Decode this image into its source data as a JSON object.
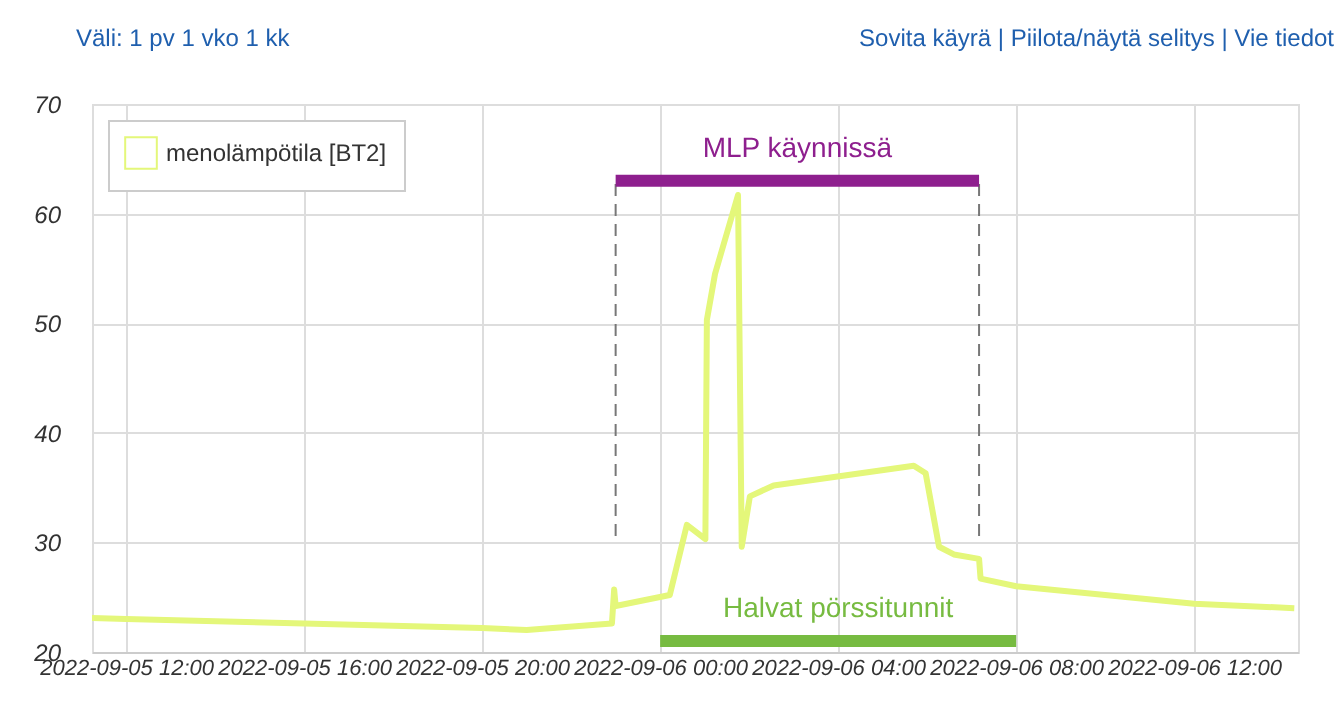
{
  "chart_data": {
    "type": "line",
    "annotations": [
      "Väli: 1 pv 1 vko 1 kk",
      "Sovita käyrä | Piilota/näytä selitys | Vie tiedot"
    ],
    "x": [
      "2022-09-05T11:14",
      "2022-09-05T12:00",
      "2022-09-05T16:00",
      "2022-09-05T20:00",
      "2022-09-05T21:00",
      "2022-09-05T22:55",
      "2022-09-05T22:58",
      "2022-09-05T23:00",
      "2022-09-06T00:13",
      "2022-09-06T00:36",
      "2022-09-06T01:01",
      "2022-09-06T01:03",
      "2022-09-06T01:14",
      "2022-09-06T01:45",
      "2022-09-06T01:50",
      "2022-09-06T02:01",
      "2022-09-06T02:33",
      "2022-09-06T05:42",
      "2022-09-06T05:58",
      "2022-09-06T06:16",
      "2022-09-06T06:36",
      "2022-09-06T07:10",
      "2022-09-06T07:12",
      "2022-09-06T08:00",
      "2022-09-06T12:00",
      "2022-09-06T14:15"
    ],
    "series": [
      {
        "name": "menolämpötila [BT2]",
        "color": "#e4f77a",
        "values": [
          23.1,
          23.0,
          22.6,
          22.2,
          22.0,
          22.6,
          25.7,
          24.2,
          25.2,
          31.6,
          30.3,
          50.3,
          54.5,
          61.7,
          29.6,
          34.2,
          35.2,
          37.0,
          36.3,
          29.6,
          28.9,
          28.5,
          26.7,
          26.0,
          24.4,
          24.0
        ]
      },
      {
        "name": "MLP käynnissä",
        "color": "#8e1f8e",
        "type": "line",
        "x": [
          "2022-09-05T23:00",
          "2022-09-06T07:10"
        ],
        "values": [
          63,
          63
        ]
      },
      {
        "name": "Halvat pörssitunnit",
        "color": "#77bb41",
        "type": "line",
        "x": [
          "2022-09-06T00:00",
          "2022-09-06T08:00"
        ],
        "values": [
          21,
          21
        ]
      }
    ],
    "xlim": [
      "2022-09-05T11:14",
      "2022-09-06T14:20"
    ],
    "xticks": [
      {
        "value": "2022-09-05T12:00",
        "label": "2022-09-05 12:00"
      },
      {
        "value": "2022-09-05T16:00",
        "label": "2022-09-05 16:00"
      },
      {
        "value": "2022-09-05T20:00",
        "label": "2022-09-05 20:00"
      },
      {
        "value": "2022-09-06T00:00",
        "label": "2022-09-06 00:00"
      },
      {
        "value": "2022-09-06T04:00",
        "label": "2022-09-06 04:00"
      },
      {
        "value": "2022-09-06T08:00",
        "label": "2022-09-06 08:00"
      },
      {
        "value": "2022-09-06T12:00",
        "label": "2022-09-06 12:00"
      }
    ],
    "ylim": [
      20,
      70
    ],
    "yticks": [
      20,
      30,
      40,
      50,
      60,
      70
    ],
    "ref_lines": [
      {
        "axis": "x",
        "value": "2022-09-05T23:00",
        "color": "#777777",
        "line_style": "dashed"
      },
      {
        "axis": "x",
        "value": "2022-09-06T07:10",
        "color": "#777777",
        "line_style": "dashed"
      }
    ],
    "grid": true,
    "legend": "top left"
  }
}
